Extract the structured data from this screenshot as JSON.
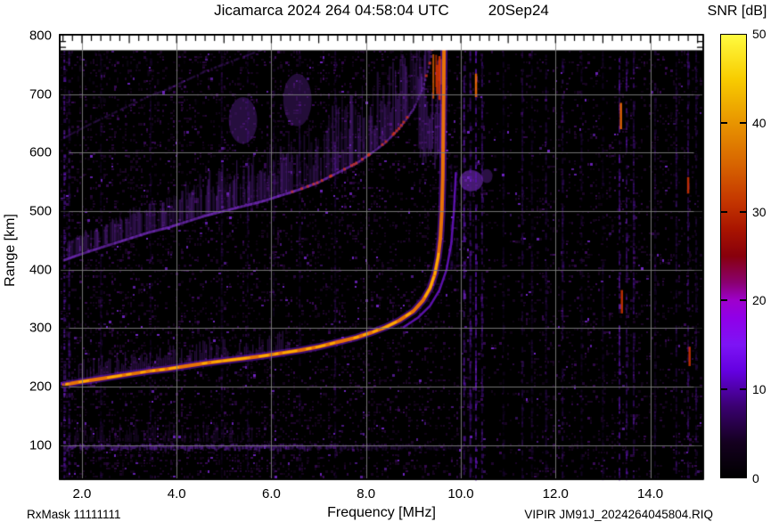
{
  "header": {
    "title_left": "Jicamarca 2024 264 04:58:04 UTC",
    "title_right": "20Sep24",
    "colorbar_title": "SNR [dB]"
  },
  "footer": {
    "rx_mask": "RxMask 11111111",
    "xlabel": "Frequency [MHz]",
    "file_label": "VIPIR  JM91J_2024264045804.RIQ"
  },
  "axes": {
    "ylabel": "Range [km]",
    "y_ticks": [
      800,
      700,
      600,
      500,
      400,
      300,
      200,
      100
    ],
    "x_ticks": [
      2.0,
      4.0,
      6.0,
      8.0,
      10.0,
      12.0,
      14.0
    ],
    "colorbar_ticks": [
      50,
      40,
      30,
      20,
      10,
      0
    ]
  },
  "chart_data": {
    "type": "heatmap",
    "title": "Jicamarca 2024 264 04:58:04 UTC 20Sep24",
    "xlabel": "Frequency [MHz]",
    "ylabel": "Range [km]",
    "colorbar_label": "SNR [dB]",
    "xlim": [
      1.55,
      15.1
    ],
    "ylim": [
      43,
      800
    ],
    "data_top_km": 775,
    "grid": true,
    "x_gridlines": [
      2,
      4,
      6,
      8,
      10,
      12,
      14
    ],
    "y_gridlines": [
      100,
      200,
      300,
      400,
      500,
      600,
      700
    ],
    "colorbar_range": [
      0,
      50
    ],
    "colormap_stops": [
      {
        "v": 0,
        "c": "#000000"
      },
      {
        "v": 4,
        "c": "#150020"
      },
      {
        "v": 8,
        "c": "#3a0070"
      },
      {
        "v": 12,
        "c": "#6400e0"
      },
      {
        "v": 15,
        "c": "#7d14f5"
      },
      {
        "v": 18,
        "c": "#9000e8"
      },
      {
        "v": 20,
        "c": "#9e00cc"
      },
      {
        "v": 22,
        "c": "#8a0070"
      },
      {
        "v": 25,
        "c": "#88000c"
      },
      {
        "v": 28,
        "c": "#a81400"
      },
      {
        "v": 31,
        "c": "#c33400"
      },
      {
        "v": 35,
        "c": "#d66000"
      },
      {
        "v": 40,
        "c": "#e89400"
      },
      {
        "v": 45,
        "c": "#f8cc00"
      },
      {
        "v": 50,
        "c": "#fffb40"
      }
    ],
    "critical_freq_mhz": 9.63,
    "o_trace": [
      [
        1.62,
        203
      ],
      [
        1.9,
        207
      ],
      [
        2.2,
        211
      ],
      [
        2.6,
        216
      ],
      [
        3.0,
        221
      ],
      [
        3.4,
        226
      ],
      [
        3.8,
        230
      ],
      [
        4.2,
        235
      ],
      [
        4.6,
        240
      ],
      [
        5.0,
        244
      ],
      [
        5.4,
        248
      ],
      [
        5.8,
        252
      ],
      [
        6.2,
        257
      ],
      [
        6.6,
        262
      ],
      [
        7.0,
        268
      ],
      [
        7.4,
        276
      ],
      [
        7.8,
        284
      ],
      [
        8.1,
        292
      ],
      [
        8.4,
        301
      ],
      [
        8.7,
        313
      ],
      [
        9.0,
        329
      ],
      [
        9.2,
        347
      ],
      [
        9.35,
        368
      ],
      [
        9.45,
        392
      ],
      [
        9.52,
        420
      ],
      [
        9.57,
        455
      ],
      [
        9.6,
        500
      ],
      [
        9.62,
        560
      ],
      [
        9.63,
        640
      ],
      [
        9.64,
        720
      ],
      [
        9.645,
        775
      ]
    ],
    "x_trace": [
      [
        8.8,
        302
      ],
      [
        9.1,
        318
      ],
      [
        9.35,
        338
      ],
      [
        9.55,
        365
      ],
      [
        9.7,
        400
      ],
      [
        9.8,
        445
      ],
      [
        9.85,
        495
      ],
      [
        9.88,
        540
      ],
      [
        9.895,
        565
      ]
    ],
    "second_hop": {
      "scale": 2.05,
      "fmin": 1.62,
      "fmax": 9.62,
      "fuzz_min_km": 28,
      "fuzz_grow": 16,
      "alpha": 0.45
    },
    "third_hop": {
      "scale": 3.08,
      "fmin": 1.62,
      "fmax": 6.7,
      "alpha": 0.22
    },
    "faint_high_echoes": {
      "fmin": 1.6,
      "fmax": 4.8,
      "rmin": 690,
      "rmax": 775,
      "alpha": 0.12
    },
    "asymptote_fuzz": {
      "fmin": 9.12,
      "fmax": 9.7,
      "rmin": 610,
      "rmax": 775
    },
    "e_noise_band": {
      "center_km": 100,
      "fmin": 1.6,
      "fmax": 10.9,
      "fade_after": 5.5,
      "fuzz_top_km": 145
    },
    "rfi_stripes": [
      {
        "f": 1.63,
        "a": 0.75
      },
      {
        "f": 1.73,
        "a": 0.45
      },
      {
        "f": 2.4,
        "a": 0.2
      },
      {
        "f": 3.45,
        "a": 0.18
      },
      {
        "f": 4.95,
        "a": 0.18
      },
      {
        "f": 5.5,
        "a": 0.22
      },
      {
        "f": 6.05,
        "a": 0.2
      },
      {
        "f": 6.6,
        "a": 0.18
      },
      {
        "f": 7.35,
        "a": 0.25
      },
      {
        "f": 9.8,
        "a": 0.3,
        "rmin": 380,
        "rmax": 580
      },
      {
        "f": 9.92,
        "a": 0.25,
        "rmin": 420,
        "rmax": 570
      },
      {
        "f": 10.07,
        "a": 0.8
      },
      {
        "f": 10.2,
        "a": 0.6
      },
      {
        "f": 10.32,
        "a": 0.85
      },
      {
        "f": 10.45,
        "a": 0.5
      },
      {
        "f": 10.9,
        "a": 0.18
      },
      {
        "f": 11.3,
        "a": 0.28
      },
      {
        "f": 11.5,
        "a": 0.2
      },
      {
        "f": 11.8,
        "a": 0.3
      },
      {
        "f": 12.15,
        "a": 0.38
      },
      {
        "f": 12.55,
        "a": 0.2
      },
      {
        "f": 13.0,
        "a": 0.22
      },
      {
        "f": 13.35,
        "a": 0.75
      },
      {
        "f": 13.5,
        "a": 0.55
      },
      {
        "f": 13.65,
        "a": 0.45
      },
      {
        "f": 14.1,
        "a": 0.25
      },
      {
        "f": 14.55,
        "a": 0.38
      },
      {
        "f": 14.8,
        "a": 0.45
      },
      {
        "f": 14.97,
        "a": 0.3
      }
    ],
    "hot_spots": [
      [
        13.38,
        640,
        685
      ],
      [
        13.4,
        325,
        365
      ],
      [
        14.8,
        530,
        558
      ],
      [
        14.83,
        235,
        268
      ],
      [
        10.32,
        695,
        735
      ],
      [
        9.55,
        690,
        765
      ],
      [
        9.5,
        700,
        750
      ]
    ],
    "patches": [
      {
        "f": 10.22,
        "r": 552,
        "rw": 0.25,
        "rh": 18,
        "a": 0.5
      },
      {
        "f": 10.55,
        "r": 560,
        "rw": 0.12,
        "rh": 12,
        "a": 0.3
      },
      {
        "f": 5.4,
        "r": 655,
        "rw": 0.3,
        "rh": 40,
        "a": 0.28
      },
      {
        "f": 6.55,
        "r": 690,
        "rw": 0.3,
        "rh": 45,
        "a": 0.25
      }
    ],
    "colors": {
      "background": "#000000",
      "noise_dim": "#1d0628",
      "noise_mid": "#3a0b57",
      "noise_bright": "#7426c9",
      "trace_halo": "#6a14c8",
      "trace_core": "#f07800",
      "trace_hot": "#ffb300",
      "spread": "#8a34e0",
      "stripe": "#5c14b0",
      "hot": "#d93500",
      "hot2": "#ff7000",
      "band": "#7a2ad2",
      "gridline": "rgba(128,128,128,0.9)"
    }
  }
}
